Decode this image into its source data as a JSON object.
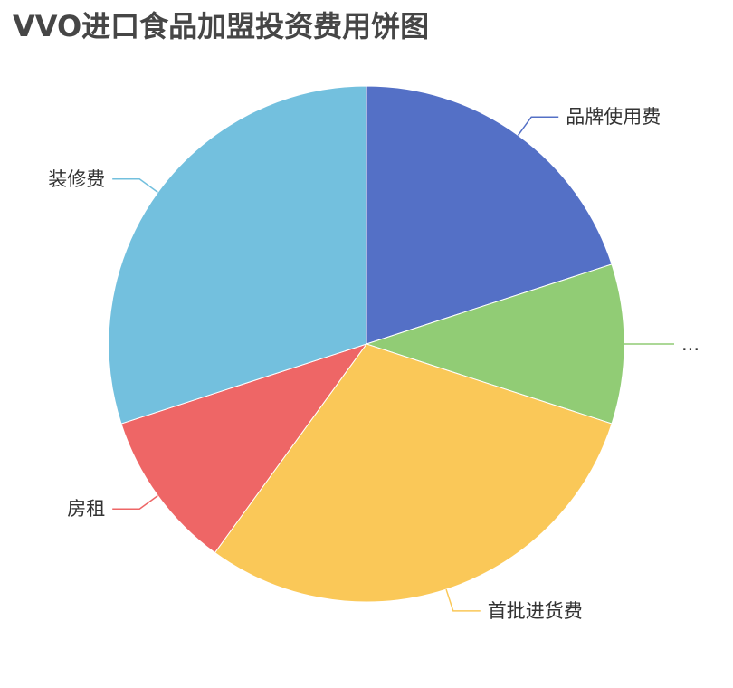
{
  "chart_data": {
    "type": "pie",
    "title": "VVO进口食品加盟投资费用饼图",
    "slices": [
      {
        "label": "品牌使用费",
        "value": 20,
        "color": "#5470c6"
      },
      {
        "label": "...",
        "value": 10,
        "color": "#91cc75"
      },
      {
        "label": "首批进货费",
        "value": 30,
        "color": "#fac858"
      },
      {
        "label": "房租",
        "value": 10,
        "color": "#ee6666"
      },
      {
        "label": "装修费",
        "value": 30,
        "color": "#73c0de"
      }
    ],
    "start_angle": "12 o'clock",
    "direction": "clockwise"
  }
}
